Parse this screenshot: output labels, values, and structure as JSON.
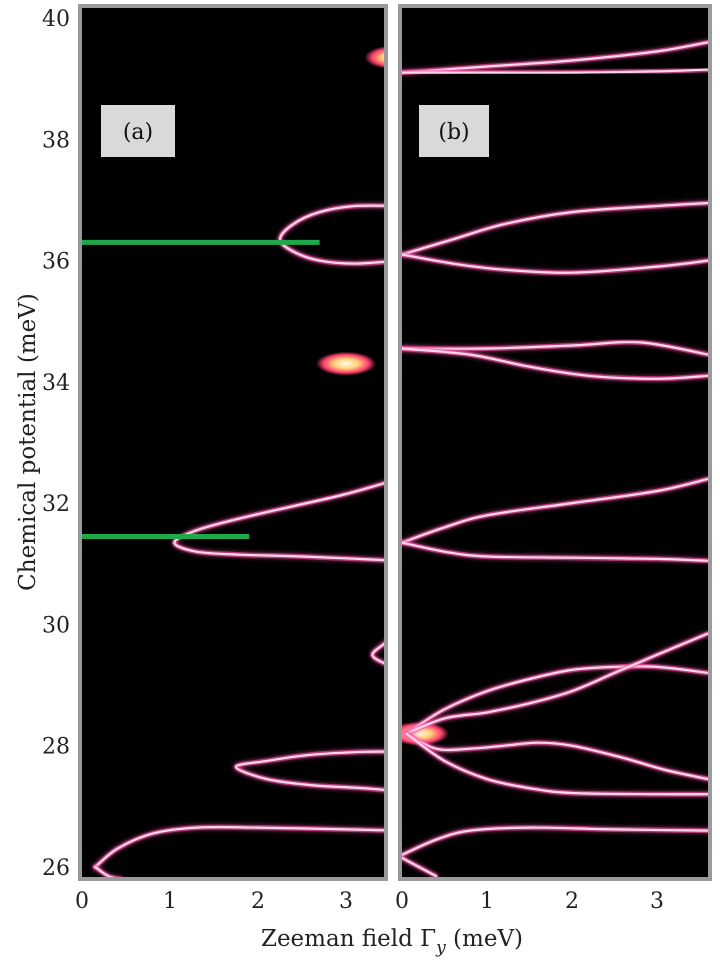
{
  "chart_data": {
    "type": "heatmap",
    "xlabel": "Zeeman field Γ",
    "xlabel_sub": "y",
    "xlabel_unit": " (meV)",
    "ylabel": "Chemical potential (meV)",
    "ylim": [
      26,
      40
    ],
    "xlim": [
      0,
      3.6
    ],
    "y_ticks": [
      "26",
      "28",
      "30",
      "32",
      "34",
      "36",
      "38",
      "40"
    ],
    "x_ticks": [
      "0",
      "1",
      "2",
      "3"
    ],
    "background_color": "#000000",
    "curve_color": "#ffd6ee",
    "glow_color": "#ff5aa8",
    "marker_color": "#1fa84a",
    "panels": [
      {
        "label": "(a)",
        "markers": [
          {
            "y": 36.3,
            "x_start": 0,
            "x_end": 2.7
          },
          {
            "y": 31.45,
            "x_start": 0,
            "x_end": 1.9
          }
        ],
        "hotspots": [
          {
            "x": 3.0,
            "y": 34.3
          },
          {
            "x": 3.55,
            "y": 39.35
          }
        ],
        "curves": [
          [
            [
              0.15,
              26.0
            ],
            [
              0.4,
              26.3
            ],
            [
              0.8,
              26.55
            ],
            [
              1.3,
              26.65
            ],
            [
              2.0,
              26.65
            ],
            [
              3.0,
              26.62
            ],
            [
              3.6,
              26.6
            ]
          ],
          [
            [
              0.15,
              26.0
            ],
            [
              0.3,
              25.85
            ],
            [
              0.45,
              25.8
            ]
          ],
          [
            [
              3.6,
              27.9
            ],
            [
              3.2,
              27.9
            ],
            [
              2.6,
              27.85
            ],
            [
              2.1,
              27.75
            ],
            [
              1.75,
              27.65
            ],
            [
              2.1,
              27.45
            ],
            [
              2.6,
              27.35
            ],
            [
              3.2,
              27.3
            ],
            [
              3.6,
              27.25
            ]
          ],
          [
            [
              3.6,
              29.9
            ],
            [
              3.45,
              29.7
            ],
            [
              3.3,
              29.5
            ],
            [
              3.45,
              29.35
            ],
            [
              3.6,
              29.3
            ]
          ],
          [
            [
              3.6,
              32.4
            ],
            [
              3.0,
              32.15
            ],
            [
              2.4,
              31.95
            ],
            [
              1.8,
              31.75
            ],
            [
              1.3,
              31.55
            ],
            [
              1.05,
              31.35
            ],
            [
              1.3,
              31.2
            ],
            [
              1.8,
              31.15
            ],
            [
              2.5,
              31.12
            ],
            [
              3.6,
              31.05
            ]
          ],
          [
            [
              3.6,
              36.9
            ],
            [
              3.1,
              36.9
            ],
            [
              2.7,
              36.8
            ],
            [
              2.4,
              36.6
            ],
            [
              2.25,
              36.35
            ],
            [
              2.4,
              36.15
            ],
            [
              2.7,
              36.0
            ],
            [
              3.1,
              35.95
            ],
            [
              3.6,
              36.0
            ]
          ]
        ]
      },
      {
        "label": "(b)",
        "markers": [],
        "hotspots": [
          {
            "x": 0.2,
            "y": 28.2
          }
        ],
        "curves": [
          [
            [
              0.0,
              26.2
            ],
            [
              0.4,
              26.45
            ],
            [
              0.8,
              26.6
            ],
            [
              1.5,
              26.65
            ],
            [
              2.5,
              26.62
            ],
            [
              3.6,
              26.6
            ]
          ],
          [
            [
              0.0,
              26.15
            ],
            [
              0.2,
              26.0
            ],
            [
              0.4,
              25.85
            ]
          ],
          [
            [
              0.05,
              28.2
            ],
            [
              0.5,
              28.6
            ],
            [
              1.0,
              28.9
            ],
            [
              1.5,
              29.1
            ],
            [
              2.0,
              29.25
            ],
            [
              2.5,
              29.3
            ],
            [
              3.0,
              29.3
            ],
            [
              3.6,
              29.2
            ]
          ],
          [
            [
              0.05,
              28.2
            ],
            [
              0.5,
              28.45
            ],
            [
              1.0,
              28.55
            ],
            [
              1.5,
              28.7
            ],
            [
              2.0,
              28.9
            ],
            [
              2.5,
              29.2
            ],
            [
              3.0,
              29.5
            ],
            [
              3.6,
              29.85
            ]
          ],
          [
            [
              0.05,
              28.2
            ],
            [
              0.4,
              27.95
            ],
            [
              0.8,
              27.95
            ],
            [
              1.2,
              28.0
            ],
            [
              1.6,
              28.05
            ],
            [
              2.0,
              28.0
            ],
            [
              2.6,
              27.8
            ],
            [
              3.1,
              27.6
            ],
            [
              3.6,
              27.45
            ]
          ],
          [
            [
              0.05,
              28.2
            ],
            [
              0.5,
              27.75
            ],
            [
              1.0,
              27.45
            ],
            [
              1.5,
              27.3
            ],
            [
              2.0,
              27.22
            ],
            [
              3.0,
              27.2
            ],
            [
              3.6,
              27.2
            ]
          ],
          [
            [
              0.0,
              31.35
            ],
            [
              0.5,
              31.6
            ],
            [
              1.0,
              31.8
            ],
            [
              2.0,
              32.0
            ],
            [
              3.0,
              32.2
            ],
            [
              3.6,
              32.4
            ]
          ],
          [
            [
              0.0,
              31.35
            ],
            [
              0.5,
              31.2
            ],
            [
              1.0,
              31.12
            ],
            [
              2.0,
              31.1
            ],
            [
              3.0,
              31.08
            ],
            [
              3.6,
              31.05
            ]
          ],
          [
            [
              0.0,
              34.55
            ],
            [
              1.0,
              34.55
            ],
            [
              2.0,
              34.6
            ],
            [
              2.8,
              34.65
            ],
            [
              3.6,
              34.45
            ]
          ],
          [
            [
              0.0,
              34.55
            ],
            [
              0.8,
              34.45
            ],
            [
              1.5,
              34.25
            ],
            [
              2.2,
              34.1
            ],
            [
              3.0,
              34.05
            ],
            [
              3.6,
              34.1
            ]
          ],
          [
            [
              0.0,
              36.1
            ],
            [
              0.6,
              36.35
            ],
            [
              1.2,
              36.6
            ],
            [
              2.0,
              36.8
            ],
            [
              3.0,
              36.9
            ],
            [
              3.6,
              36.95
            ]
          ],
          [
            [
              0.0,
              36.1
            ],
            [
              0.6,
              35.95
            ],
            [
              1.2,
              35.85
            ],
            [
              2.0,
              35.8
            ],
            [
              3.0,
              35.9
            ],
            [
              3.6,
              36.0
            ]
          ],
          [
            [
              0.0,
              39.1
            ],
            [
              1.0,
              39.2
            ],
            [
              2.0,
              39.3
            ],
            [
              3.0,
              39.45
            ],
            [
              3.6,
              39.6
            ]
          ],
          [
            [
              0.0,
              39.1
            ],
            [
              1.0,
              39.1
            ],
            [
              2.0,
              39.1
            ],
            [
              3.0,
              39.12
            ],
            [
              3.6,
              39.15
            ]
          ]
        ]
      }
    ]
  }
}
